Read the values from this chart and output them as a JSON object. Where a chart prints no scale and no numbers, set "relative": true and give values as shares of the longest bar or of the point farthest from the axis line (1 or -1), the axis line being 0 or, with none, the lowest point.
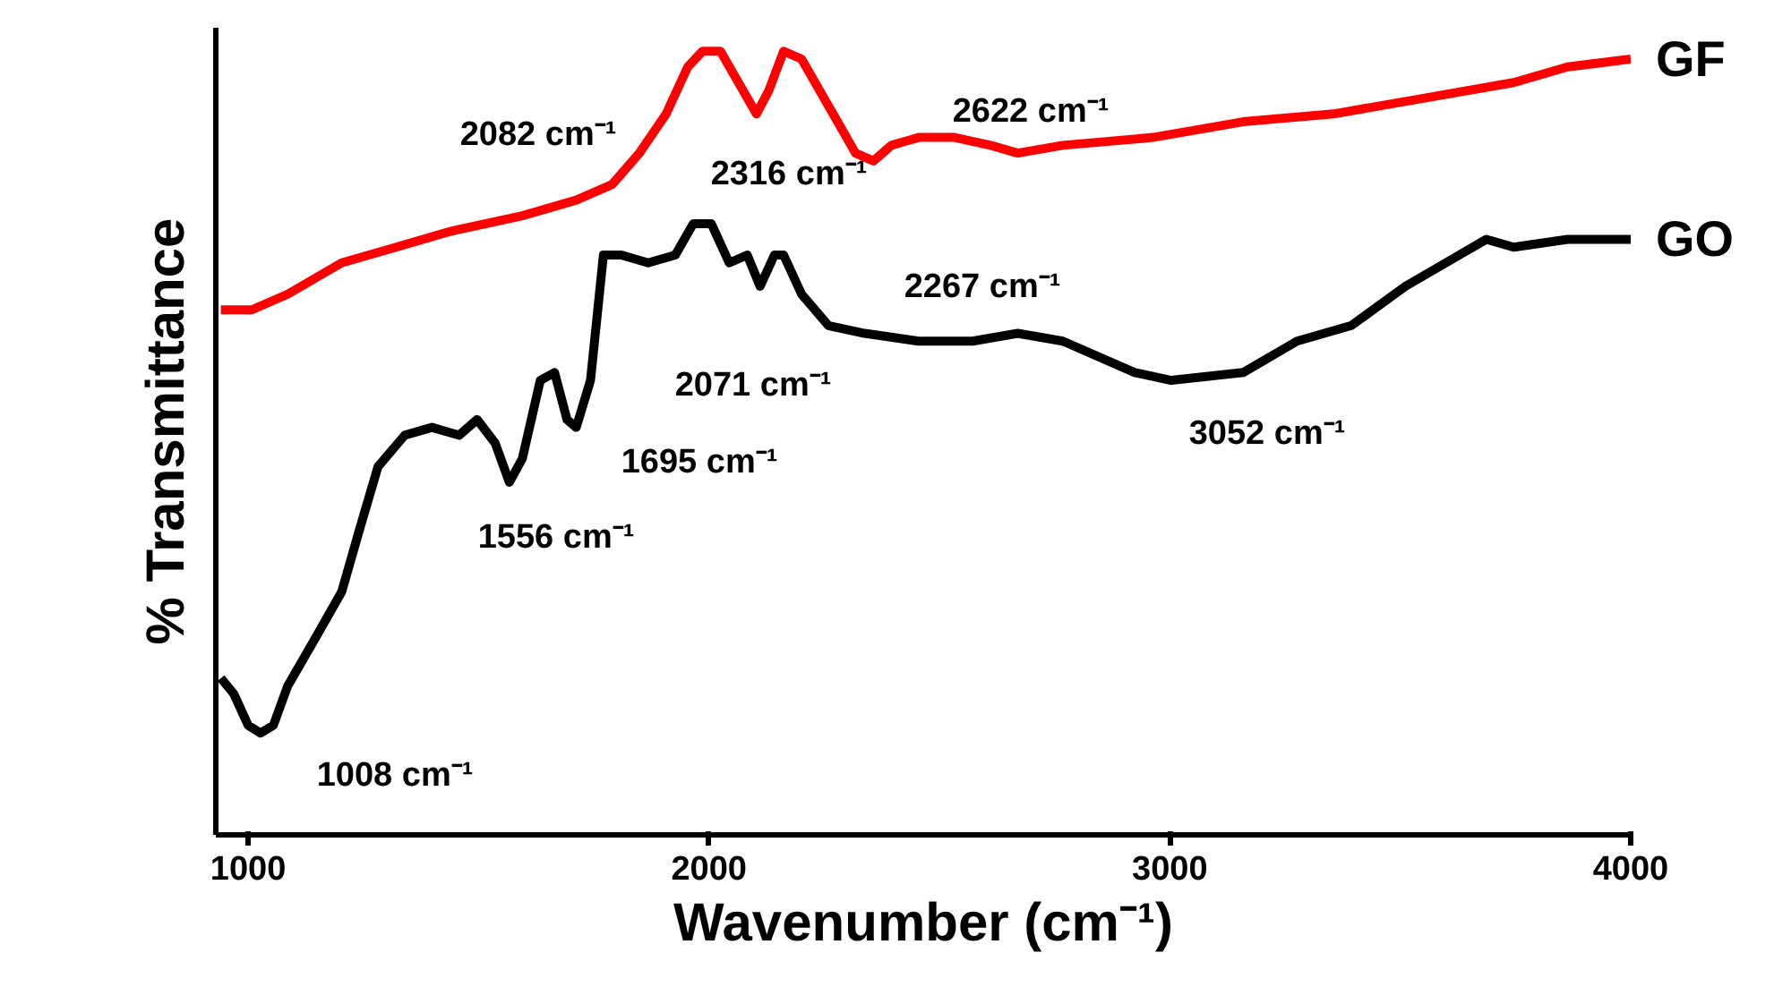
{
  "chart_data": {
    "type": "line",
    "relative": true,
    "xlabel": "Wavenumber (cm⁻¹)",
    "ylabel": "% Transmittance",
    "xlim": [
      930,
      4000
    ],
    "xticks": [
      1000,
      2000,
      3000,
      4000
    ],
    "grid": false,
    "legend": false,
    "marker": "none",
    "line_style": "solid",
    "series": [
      {
        "name": "GF",
        "color": "#ff0000",
        "x": [
          941,
          1008,
          1086,
          1203,
          1321,
          1438,
          1595,
          1712,
          1790,
          1849,
          1907,
          1954,
          1986,
          2025,
          2064,
          2103,
          2130,
          2162,
          2201,
          2240,
          2279,
          2318,
          2357,
          2396,
          2455,
          2533,
          2611,
          2670,
          2768,
          2963,
          3159,
          3355,
          3550,
          3746,
          3863,
          4000
        ],
        "values": [
          0.67,
          0.67,
          0.69,
          0.73,
          0.75,
          0.77,
          0.79,
          0.81,
          0.83,
          0.87,
          0.92,
          0.98,
          1.0,
          1.0,
          0.96,
          0.92,
          0.95,
          1.0,
          0.99,
          0.95,
          0.91,
          0.87,
          0.86,
          0.88,
          0.89,
          0.89,
          0.88,
          0.87,
          0.88,
          0.89,
          0.91,
          0.92,
          0.94,
          0.96,
          0.98,
          0.99
        ]
      },
      {
        "name": "GO",
        "color": "#000000",
        "x": [
          941,
          969,
          1000,
          1027,
          1055,
          1086,
          1145,
          1203,
          1242,
          1282,
          1340,
          1399,
          1458,
          1497,
          1536,
          1567,
          1595,
          1634,
          1665,
          1692,
          1712,
          1743,
          1771,
          1810,
          1868,
          1927,
          1966,
          2005,
          2044,
          2083,
          2111,
          2142,
          2162,
          2201,
          2259,
          2338,
          2455,
          2572,
          2670,
          2768,
          2924,
          3003,
          3159,
          3276,
          3394,
          3511,
          3628,
          3687,
          3746,
          3863,
          4000
        ],
        "values": [
          0.2,
          0.18,
          0.14,
          0.13,
          0.14,
          0.19,
          0.25,
          0.31,
          0.39,
          0.47,
          0.51,
          0.52,
          0.51,
          0.53,
          0.5,
          0.45,
          0.48,
          0.58,
          0.59,
          0.53,
          0.52,
          0.58,
          0.74,
          0.74,
          0.73,
          0.74,
          0.78,
          0.78,
          0.73,
          0.74,
          0.7,
          0.74,
          0.74,
          0.69,
          0.65,
          0.64,
          0.63,
          0.63,
          0.64,
          0.63,
          0.59,
          0.58,
          0.59,
          0.63,
          0.65,
          0.7,
          0.74,
          0.76,
          0.75,
          0.76,
          0.76
        ]
      }
    ],
    "annotations": [
      "1008 cm⁻¹",
      "1556 cm⁻¹",
      "1695 cm⁻¹",
      "2071 cm⁻¹",
      "2267 cm⁻¹",
      "3052 cm⁻¹",
      "2082 cm⁻¹",
      "2316 cm⁻¹",
      "2622 cm⁻¹"
    ]
  }
}
